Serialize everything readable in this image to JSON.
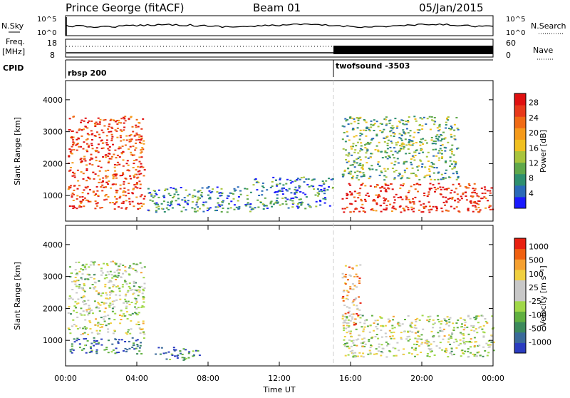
{
  "header": {
    "station": "Prince George (fitACF)",
    "beam": "Beam 01",
    "date": "05/Jan/2015"
  },
  "strips": {
    "nsky_label": "N.Sky",
    "nsearch_label": "N.Search",
    "noise_ticks": [
      "10^5",
      "10^0"
    ],
    "freq_label": "Freq.",
    "freq_unit": "[MHz]",
    "freq_ticks": [
      "18",
      "8"
    ],
    "nave_label": "Nave",
    "nave_ticks": [
      "60",
      "0"
    ],
    "cpid_label": "CPID",
    "cpid_segments": [
      {
        "name": "rbsp 200",
        "start_hour": 0
      },
      {
        "name": "twofsound -3503",
        "start_hour": 15.1
      }
    ]
  },
  "chart_data": [
    {
      "type": "heatmap",
      "panel": "power",
      "ylabel": "Slant Range [km]",
      "ylim": [
        200,
        4600
      ],
      "y_ticks": [
        "1000",
        "2000",
        "3000",
        "4000"
      ],
      "x_range_hours": [
        0,
        24
      ],
      "colorbar": {
        "label": "Power [dB]",
        "ticks": [
          "4",
          "8",
          "12",
          "16",
          "20",
          "24",
          "28"
        ],
        "colors": [
          "#1a1aff",
          "#2a6ab8",
          "#2e8f6f",
          "#5fa84a",
          "#a8c43c",
          "#f0c020",
          "#f59a1a",
          "#f06a14",
          "#e8391a",
          "#e01010"
        ]
      },
      "regions": [
        {
          "x": [
            0.1,
            4.4
          ],
          "y": [
            600,
            3500
          ],
          "level": 0.85
        },
        {
          "x": [
            4.5,
            10.5
          ],
          "y": [
            500,
            1300
          ],
          "level": 0.25
        },
        {
          "x": [
            10.5,
            15.0
          ],
          "y": [
            600,
            1600
          ],
          "level": 0.2
        },
        {
          "x": [
            15.5,
            24.0
          ],
          "y": [
            500,
            1400
          ],
          "level": 0.9
        },
        {
          "x": [
            15.5,
            22.0
          ],
          "y": [
            1500,
            3500
          ],
          "level": 0.35
        }
      ]
    },
    {
      "type": "heatmap",
      "panel": "velocity",
      "ylabel": "Slant Range [km]",
      "xlabel": "Time UT",
      "ylim": [
        200,
        4600
      ],
      "y_ticks": [
        "1000",
        "2000",
        "3000",
        "4000"
      ],
      "x_ticks": [
        "00:00",
        "04:00",
        "08:00",
        "12:00",
        "16:00",
        "20:00",
        "00:00"
      ],
      "x_range_hours": [
        0,
        24
      ],
      "colorbar": {
        "label": "Velocity [m s⁻¹]",
        "ticks": [
          "1000",
          "500",
          "100",
          "25",
          "-25",
          "-100",
          "-500",
          "-1000"
        ],
        "colors": [
          "#2a3cc0",
          "#3a6a9a",
          "#3c8a5c",
          "#60b040",
          "#a0d848",
          "#c8c8c8",
          "#c8c8c8",
          "#f0d040",
          "#f5a030",
          "#f06010",
          "#e82010"
        ]
      },
      "regions": [
        {
          "x": [
            0.1,
            4.4
          ],
          "y": [
            1200,
            3500
          ],
          "level": 0.5
        },
        {
          "x": [
            0.1,
            4.4
          ],
          "y": [
            600,
            1100
          ],
          "level": 0.15
        },
        {
          "x": [
            5.0,
            7.5
          ],
          "y": [
            400,
            800
          ],
          "level": 0.15
        },
        {
          "x": [
            15.5,
            24.0
          ],
          "y": [
            500,
            1800
          ],
          "level": 0.5
        },
        {
          "x": [
            15.5,
            16.5
          ],
          "y": [
            1500,
            3400
          ],
          "level": 0.75
        }
      ]
    }
  ]
}
